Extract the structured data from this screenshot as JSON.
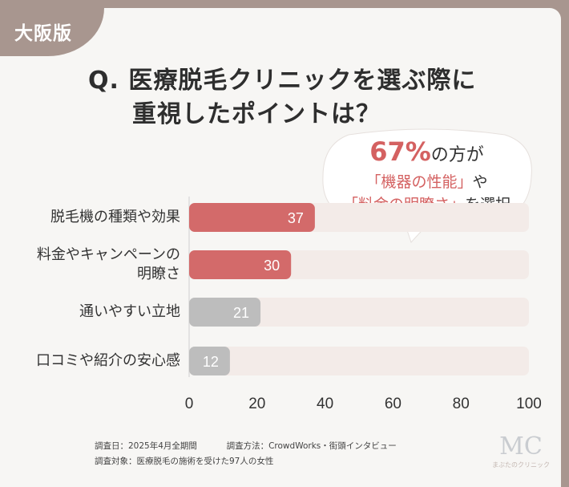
{
  "badge": "大阪版",
  "title_line1": "Q. 医療脱毛クリニックを選ぶ際に",
  "title_line2": "重視したポイントは？",
  "callout": {
    "pct": "67%",
    "pct_suffix": "の方が",
    "line2": "「機器の性能」",
    "line2_suffix": "や",
    "line3": "「料金の明瞭さ」",
    "line3_suffix": "を選択"
  },
  "chart_data": {
    "type": "bar",
    "orientation": "horizontal",
    "categories": [
      "脱毛機の種類や効果",
      "料金やキャンペーンの明瞭さ",
      "通いやすい立地",
      "口コミや紹介の安心感"
    ],
    "category_lines": [
      [
        "脱毛機の種類や効果"
      ],
      [
        "料金やキャンペーンの",
        "明瞭さ"
      ],
      [
        "通いやすい立地"
      ],
      [
        "口コミや紹介の安心感"
      ]
    ],
    "values": [
      37,
      30,
      21,
      12
    ],
    "highlighted": [
      true,
      true,
      false,
      false
    ],
    "xlim": [
      0,
      100
    ],
    "xticks": [
      "0",
      "20",
      "40",
      "60",
      "80",
      "100"
    ],
    "grid": false,
    "colors": {
      "highlight": "#d36a6a",
      "normal": "#bdbdbd",
      "track": "#f3ebe8"
    }
  },
  "footer": {
    "line1a": "調査日：2025年4月全期間",
    "line1b": "調査方法：CrowdWorks・街頭インタビュー",
    "line2": "調査対象：医療脱毛の施術を受けた97人の女性"
  },
  "logo": {
    "mark": "MC",
    "text": "まぶたのクリニック"
  }
}
